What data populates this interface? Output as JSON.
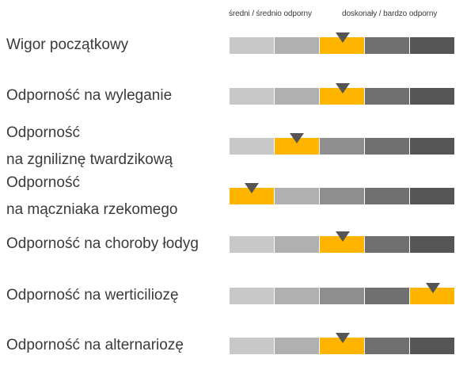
{
  "legend": {
    "left_label": "średni / średnio odporny",
    "right_label": "doskonały / bardzo odporny"
  },
  "colors": {
    "highlight": "#ffb400",
    "segments": [
      "#c8c8c8",
      "#b0b0b0",
      "#8f8f8f",
      "#6f6f6f",
      "#555555"
    ],
    "marker": "#555555"
  },
  "chart_data": {
    "type": "table",
    "scale_levels": 5,
    "rows": [
      {
        "label_lines": [
          "Wigor początkowy"
        ],
        "value": 3
      },
      {
        "label_lines": [
          "Odporność na wyleganie"
        ],
        "value": 3
      },
      {
        "label_lines": [
          "Odporność",
          "na zgniliznę twardzikową"
        ],
        "value": 2
      },
      {
        "label_lines": [
          "Odporność",
          "na mączniaka rzekomego"
        ],
        "value": 1
      },
      {
        "label_lines": [
          "Odporność na choroby łodyg"
        ],
        "value": 3
      },
      {
        "label_lines": [
          "Odporność na werticiliozę"
        ],
        "value": 5
      },
      {
        "label_lines": [
          "Odporność na alternariozę"
        ],
        "value": 3
      }
    ]
  }
}
